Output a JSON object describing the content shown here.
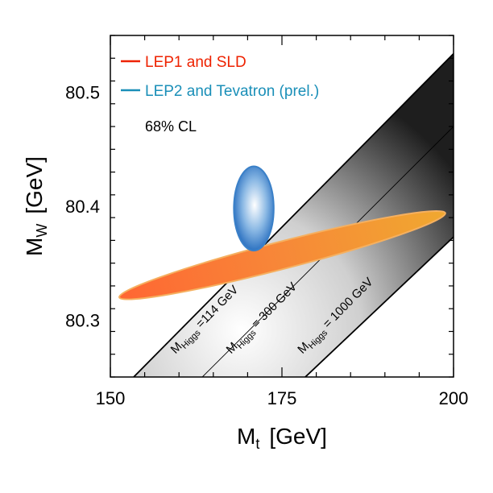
{
  "chart_data": {
    "type": "contour",
    "xlabel": {
      "main": "M",
      "sub": "t",
      "unit": "[GeV]"
    },
    "ylabel": {
      "main": "M",
      "sub": "W",
      "unit": "[GeV]"
    },
    "xlim": [
      150,
      200
    ],
    "ylim": [
      80.25,
      80.55
    ],
    "xticks": [
      150,
      175,
      200
    ],
    "xtick_labels": [
      "150",
      "175",
      "200"
    ],
    "yticks": [
      80.3,
      80.4,
      80.5
    ],
    "ytick_labels": [
      "80.3",
      "80.4",
      "80.5"
    ],
    "confidence_label": "68% CL",
    "legend": [
      {
        "label": "LEP1 and SLD",
        "color": "#ee2200"
      },
      {
        "label": "LEP2 and Tevatron (prel.)",
        "color": "#1a8fb8"
      }
    ],
    "ellipses": [
      {
        "name": "LEP1 and SLD",
        "center_x": 176.0,
        "center_y": 80.357,
        "axis_points": [
          [
            151.3,
            80.32
          ],
          [
            198.8,
            80.394
          ]
        ],
        "half_width_y": 0.012,
        "fill": "#ff6633",
        "fill_end": "#f0a830",
        "stroke": "#f5b060"
      },
      {
        "name": "LEP2 and Tevatron (prel.)",
        "center_x": 170.9,
        "center_y": 80.398,
        "sigma_x": 2.9,
        "sigma_y": 0.037,
        "fill": "#2a70c0",
        "fill_center": "#ffffff",
        "stroke": "#3a80c8"
      }
    ],
    "higgs_band": {
      "lines": [
        {
          "mh_label": "114 GeV",
          "points": [
            [
              153.4,
              80.25
            ],
            [
              200,
              80.534
            ]
          ]
        },
        {
          "mh_label": "300 GeV",
          "points": [
            [
              163.4,
              80.25
            ],
            [
              200,
              80.47
            ]
          ]
        },
        {
          "mh_label": "1000 GeV",
          "points": [
            [
              178.4,
              80.25
            ],
            [
              200,
              80.373
            ]
          ]
        }
      ],
      "labels": [
        {
          "prefix": "M",
          "sub": "Higgs",
          "suffix": " =114  GeV",
          "at": [
            159.5,
            80.27
          ]
        },
        {
          "prefix": "M",
          "sub": "Higgs",
          "suffix": " = 300 GeV",
          "at": [
            167.6,
            80.27
          ]
        },
        {
          "prefix": "M",
          "sub": "Higgs",
          "suffix": " = 1000 GeV",
          "at": [
            178.0,
            80.27
          ]
        }
      ]
    }
  }
}
